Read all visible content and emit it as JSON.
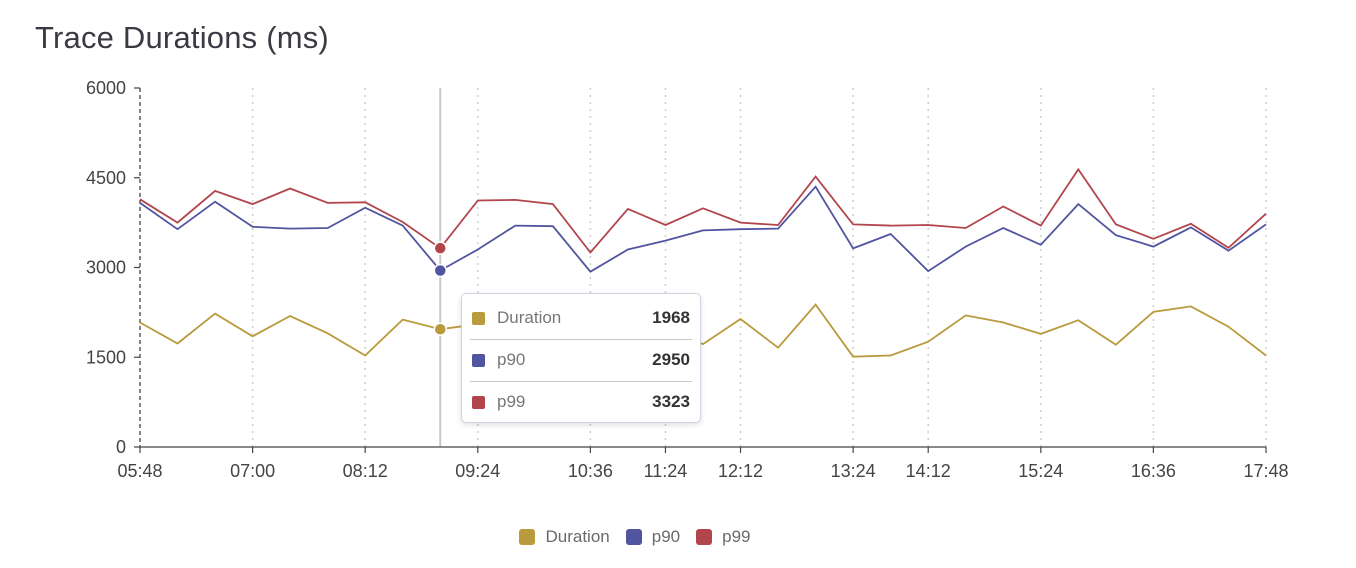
{
  "page": {
    "title": "Trace Durations (ms)"
  },
  "colors": {
    "duration": "#b99a3c",
    "p90": "#5155a0",
    "p99": "#b2454c",
    "grid": "#cfcfcf",
    "cursor": "#c8c8c8"
  },
  "chart_data": {
    "type": "line",
    "title": "Trace Durations (ms)",
    "xlabel": "",
    "ylabel": "",
    "ylim": [
      0,
      6000
    ],
    "yticks": [
      0,
      1500,
      3000,
      4500,
      6000
    ],
    "xtick_labels": [
      "05:48",
      "07:00",
      "08:12",
      "09:24",
      "10:36",
      "11:24",
      "12:12",
      "13:24",
      "14:12",
      "15:24",
      "16:36",
      "17:48"
    ],
    "x_minutes_start": "05:48",
    "x_minutes_end": "17:48",
    "x": [
      "05:48",
      "06:12",
      "06:36",
      "07:00",
      "07:24",
      "07:48",
      "08:12",
      "08:36",
      "09:00",
      "09:24",
      "09:48",
      "10:12",
      "10:36",
      "11:00",
      "11:24",
      "11:48",
      "12:12",
      "12:36",
      "13:00",
      "13:24",
      "13:48",
      "14:12",
      "14:36",
      "15:00",
      "15:24",
      "15:48",
      "16:12",
      "16:36",
      "17:00",
      "17:24",
      "17:48"
    ],
    "series": [
      {
        "name": "Duration",
        "values": [
          2080,
          1730,
          2230,
          1850,
          2190,
          1900,
          1530,
          2130,
          1968,
          2050,
          2000,
          1950,
          1750,
          1850,
          1980,
          1720,
          2140,
          1660,
          2380,
          1510,
          1530,
          1760,
          2200,
          2080,
          1890,
          2120,
          1710,
          2260,
          2350,
          2010,
          1530
        ]
      },
      {
        "name": "p90",
        "values": [
          4080,
          3640,
          4100,
          3680,
          3650,
          3660,
          4000,
          3700,
          2950,
          3300,
          3700,
          3690,
          2930,
          3300,
          3450,
          3620,
          3640,
          3650,
          4350,
          3320,
          3560,
          2940,
          3350,
          3660,
          3380,
          4060,
          3540,
          3350,
          3670,
          3280,
          3720
        ]
      },
      {
        "name": "p99",
        "values": [
          4140,
          3750,
          4280,
          4060,
          4320,
          4080,
          4090,
          3760,
          3323,
          4120,
          4130,
          4060,
          3250,
          3980,
          3710,
          3990,
          3750,
          3710,
          4520,
          3720,
          3700,
          3710,
          3660,
          4020,
          3700,
          4640,
          3720,
          3480,
          3730,
          3330,
          3900
        ]
      }
    ],
    "tooltip": {
      "time": "09:00",
      "rows": [
        {
          "name": "Duration",
          "value": "1968"
        },
        {
          "name": "p90",
          "value": "2950"
        },
        {
          "name": "p99",
          "value": "3323"
        }
      ]
    },
    "legend": [
      "Duration",
      "p90",
      "p99"
    ],
    "legend_position": "bottom-center",
    "grid": "vertical-dotted"
  }
}
